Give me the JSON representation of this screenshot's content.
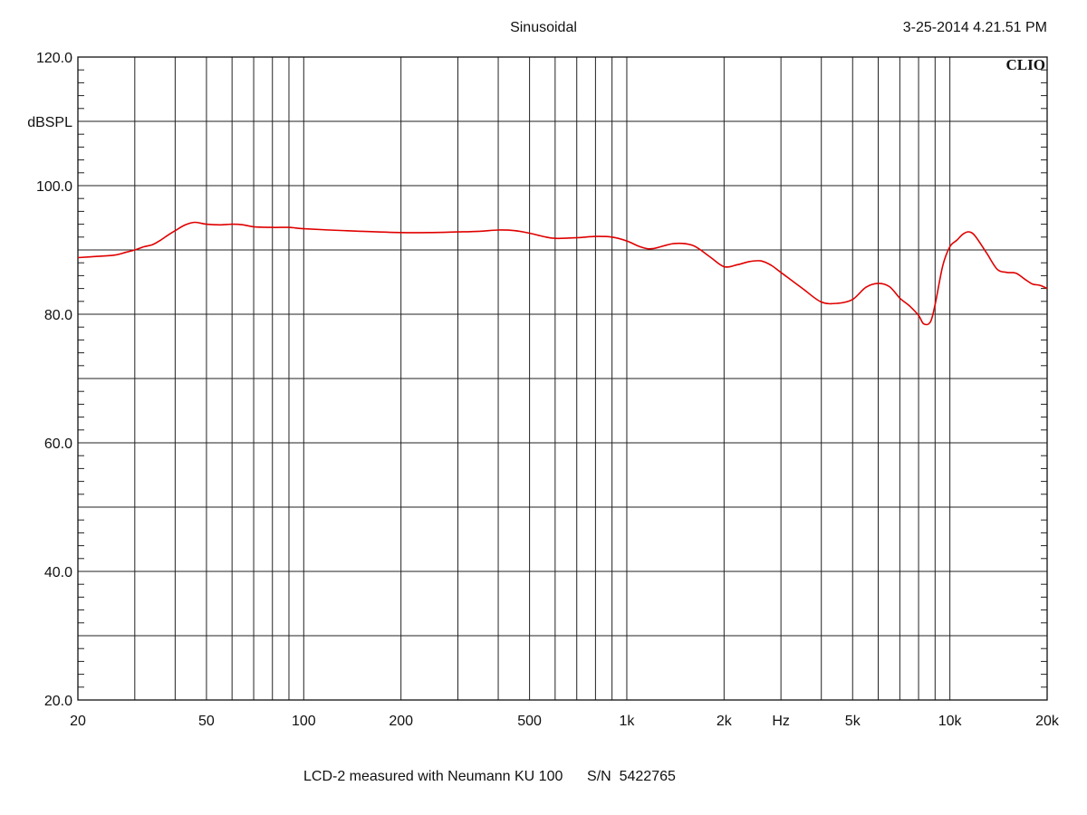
{
  "header": {
    "title": "Sinusoidal",
    "timestamp": "3-25-2014 4.21.51 PM"
  },
  "logo": "CLIO",
  "footer": {
    "caption": "LCD-2 measured with Neumann KU 100",
    "serial": "S/N  5422765"
  },
  "chart_data": {
    "type": "line",
    "title": "Sinusoidal",
    "xlabel": "Hz",
    "ylabel": "dBSPL",
    "xscale": "log",
    "xlim": [
      20,
      20000
    ],
    "ylim": [
      20,
      120
    ],
    "grid": true,
    "line_color": "#e00000",
    "x_ticks": [
      {
        "value": 20,
        "label": "20"
      },
      {
        "value": 50,
        "label": "50"
      },
      {
        "value": 100,
        "label": "100"
      },
      {
        "value": 200,
        "label": "200"
      },
      {
        "value": 500,
        "label": "500"
      },
      {
        "value": 1000,
        "label": "1k"
      },
      {
        "value": 2000,
        "label": "2k"
      },
      {
        "value": 5000,
        "label": "5k"
      },
      {
        "value": 10000,
        "label": "10k"
      },
      {
        "value": 20000,
        "label": "20k"
      }
    ],
    "y_ticks": [
      {
        "value": 20,
        "label": "20.0"
      },
      {
        "value": 40,
        "label": "40.0"
      },
      {
        "value": 60,
        "label": "60.0"
      },
      {
        "value": 80,
        "label": "80.0"
      },
      {
        "value": 100,
        "label": "100.0"
      },
      {
        "value": 120,
        "label": "120.0"
      }
    ],
    "series": [
      {
        "x": [
          20,
          23,
          26,
          28,
          30,
          32,
          34,
          36,
          38,
          40,
          43,
          46,
          50,
          55,
          60,
          65,
          70,
          80,
          90,
          100,
          120,
          150,
          200,
          250,
          300,
          350,
          400,
          450,
          500,
          550,
          600,
          700,
          800,
          900,
          1000,
          1100,
          1200,
          1400,
          1600,
          1800,
          2000,
          2200,
          2400,
          2600,
          2800,
          3000,
          3500,
          4000,
          4500,
          5000,
          5500,
          6000,
          6500,
          7000,
          7500,
          8000,
          8300,
          8700,
          9000,
          9500,
          10000,
          10500,
          11000,
          11500,
          12000,
          13000,
          14000,
          15000,
          16000,
          17000,
          18000,
          19000,
          20000
        ],
        "y": [
          88.8,
          89.0,
          89.2,
          89.6,
          90.0,
          90.5,
          90.8,
          91.5,
          92.3,
          93.0,
          93.9,
          94.3,
          94.0,
          93.9,
          94.0,
          93.9,
          93.6,
          93.5,
          93.5,
          93.3,
          93.1,
          92.9,
          92.7,
          92.7,
          92.8,
          92.9,
          93.1,
          93.0,
          92.6,
          92.1,
          91.8,
          91.9,
          92.1,
          92.0,
          91.4,
          90.5,
          90.2,
          91.0,
          90.7,
          89.0,
          87.4,
          87.7,
          88.2,
          88.3,
          87.6,
          86.5,
          84.0,
          81.9,
          81.7,
          82.3,
          84.2,
          84.8,
          84.3,
          82.5,
          81.3,
          79.8,
          78.5,
          78.8,
          81.5,
          87.5,
          90.5,
          91.5,
          92.5,
          92.8,
          92.1,
          89.5,
          87.0,
          86.5,
          86.4,
          85.5,
          84.7,
          84.5,
          84.0
        ]
      }
    ]
  }
}
